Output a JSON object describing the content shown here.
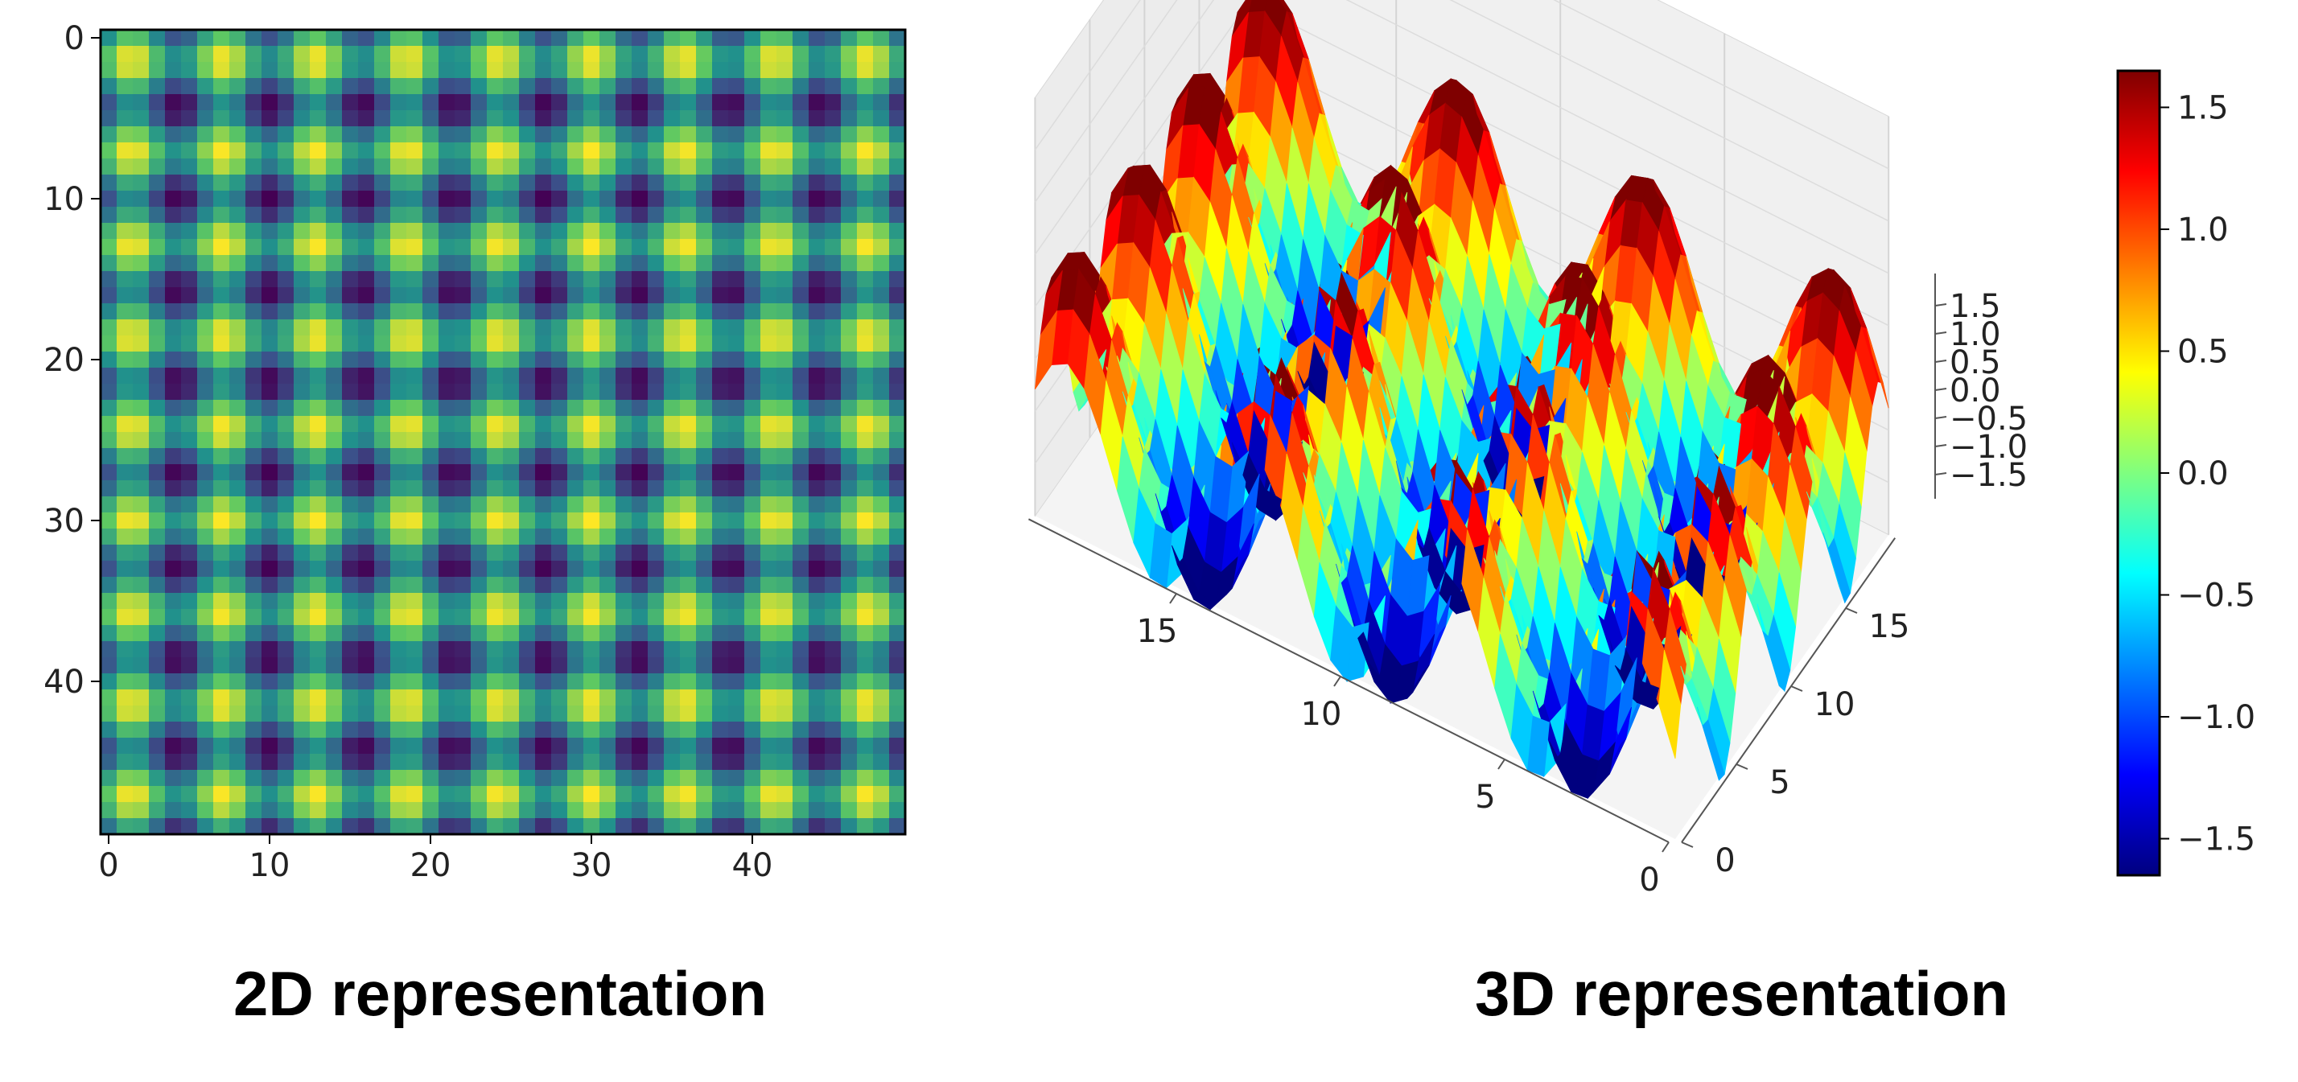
{
  "captions": {
    "left": "2D representation",
    "right": "3D representation"
  },
  "colors": {
    "viridis": [
      "#440154",
      "#3b528b",
      "#21918c",
      "#5ec962",
      "#fde725"
    ],
    "jet": [
      "#00007f",
      "#0000ff",
      "#007fff",
      "#00ffff",
      "#7fff7f",
      "#ffff00",
      "#ff7f00",
      "#ff0000",
      "#7f0000"
    ]
  },
  "chart_data": [
    {
      "type": "heatmap",
      "title": "",
      "xlabel": "",
      "ylabel": "",
      "function": "z = sin(0.35*x*pi) + sin(0.35*y*pi)",
      "grid_size": 50,
      "xlim": [
        0,
        49
      ],
      "ylim": [
        49,
        0
      ],
      "x_ticks": [
        "0",
        "10",
        "20",
        "30",
        "40"
      ],
      "y_ticks": [
        "0",
        "10",
        "20",
        "30",
        "40"
      ],
      "colormap": "viridis",
      "value_range": [
        -2,
        2
      ]
    },
    {
      "type": "surface",
      "title": "",
      "function": "z = sin(0.35*x*pi) + sin(0.35*y*pi)",
      "x_ticks": [
        "0",
        "5",
        "10",
        "15"
      ],
      "y_ticks": [
        "0",
        "5",
        "10",
        "15"
      ],
      "z_ticks": [
        "−1.5",
        "−1.0",
        "−0.5",
        "0.0",
        "0.5",
        "1.0",
        "1.5"
      ],
      "colormap": "jet",
      "colorbar": {
        "range": [
          -1.65,
          1.65
        ],
        "ticks": [
          "−1.5",
          "−1.0",
          "−0.5",
          "0.0",
          "0.5",
          "1.0",
          "1.5"
        ],
        "tick_values": [
          -1.5,
          -1.0,
          -0.5,
          0.0,
          0.5,
          1.0,
          1.5
        ],
        "placement": "right"
      }
    }
  ]
}
